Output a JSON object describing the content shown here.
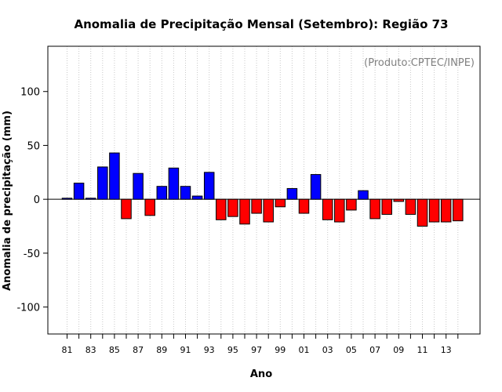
{
  "chart_data": {
    "type": "bar",
    "title": "Anomalia de Precipitação Mensal (Setembro): Região 73",
    "xlabel": "Ano",
    "ylabel": "Anomalia de precipitação (mm)",
    "annotation": "(Produto:CPTEC/INPE)",
    "ylim": [
      -125,
      142
    ],
    "yticks": [
      -100,
      -50,
      0,
      50,
      100
    ],
    "grid": "vertical-dotted",
    "positive_color": "#0000ff",
    "negative_color": "#ff0000",
    "categories": [
      "81",
      "82",
      "83",
      "84",
      "85",
      "86",
      "87",
      "88",
      "89",
      "90",
      "91",
      "92",
      "93",
      "94",
      "95",
      "96",
      "97",
      "98",
      "99",
      "00",
      "01",
      "02",
      "03",
      "04",
      "05",
      "06",
      "07",
      "08",
      "09",
      "10",
      "11",
      "12",
      "13",
      "14"
    ],
    "xtick_labels": [
      "81",
      "83",
      "85",
      "87",
      "89",
      "91",
      "93",
      "95",
      "97",
      "99",
      "01",
      "03",
      "05",
      "07",
      "09",
      "11",
      "13"
    ],
    "values": [
      1,
      15,
      1,
      30,
      43,
      -18,
      24,
      -15,
      12,
      29,
      12,
      3,
      25,
      -19,
      -16,
      -23,
      -13,
      -21,
      -7,
      10,
      -13,
      23,
      -19,
      -21,
      -10,
      8,
      -18,
      -14,
      -2,
      -14,
      -25,
      -21,
      -21,
      -20
    ]
  }
}
